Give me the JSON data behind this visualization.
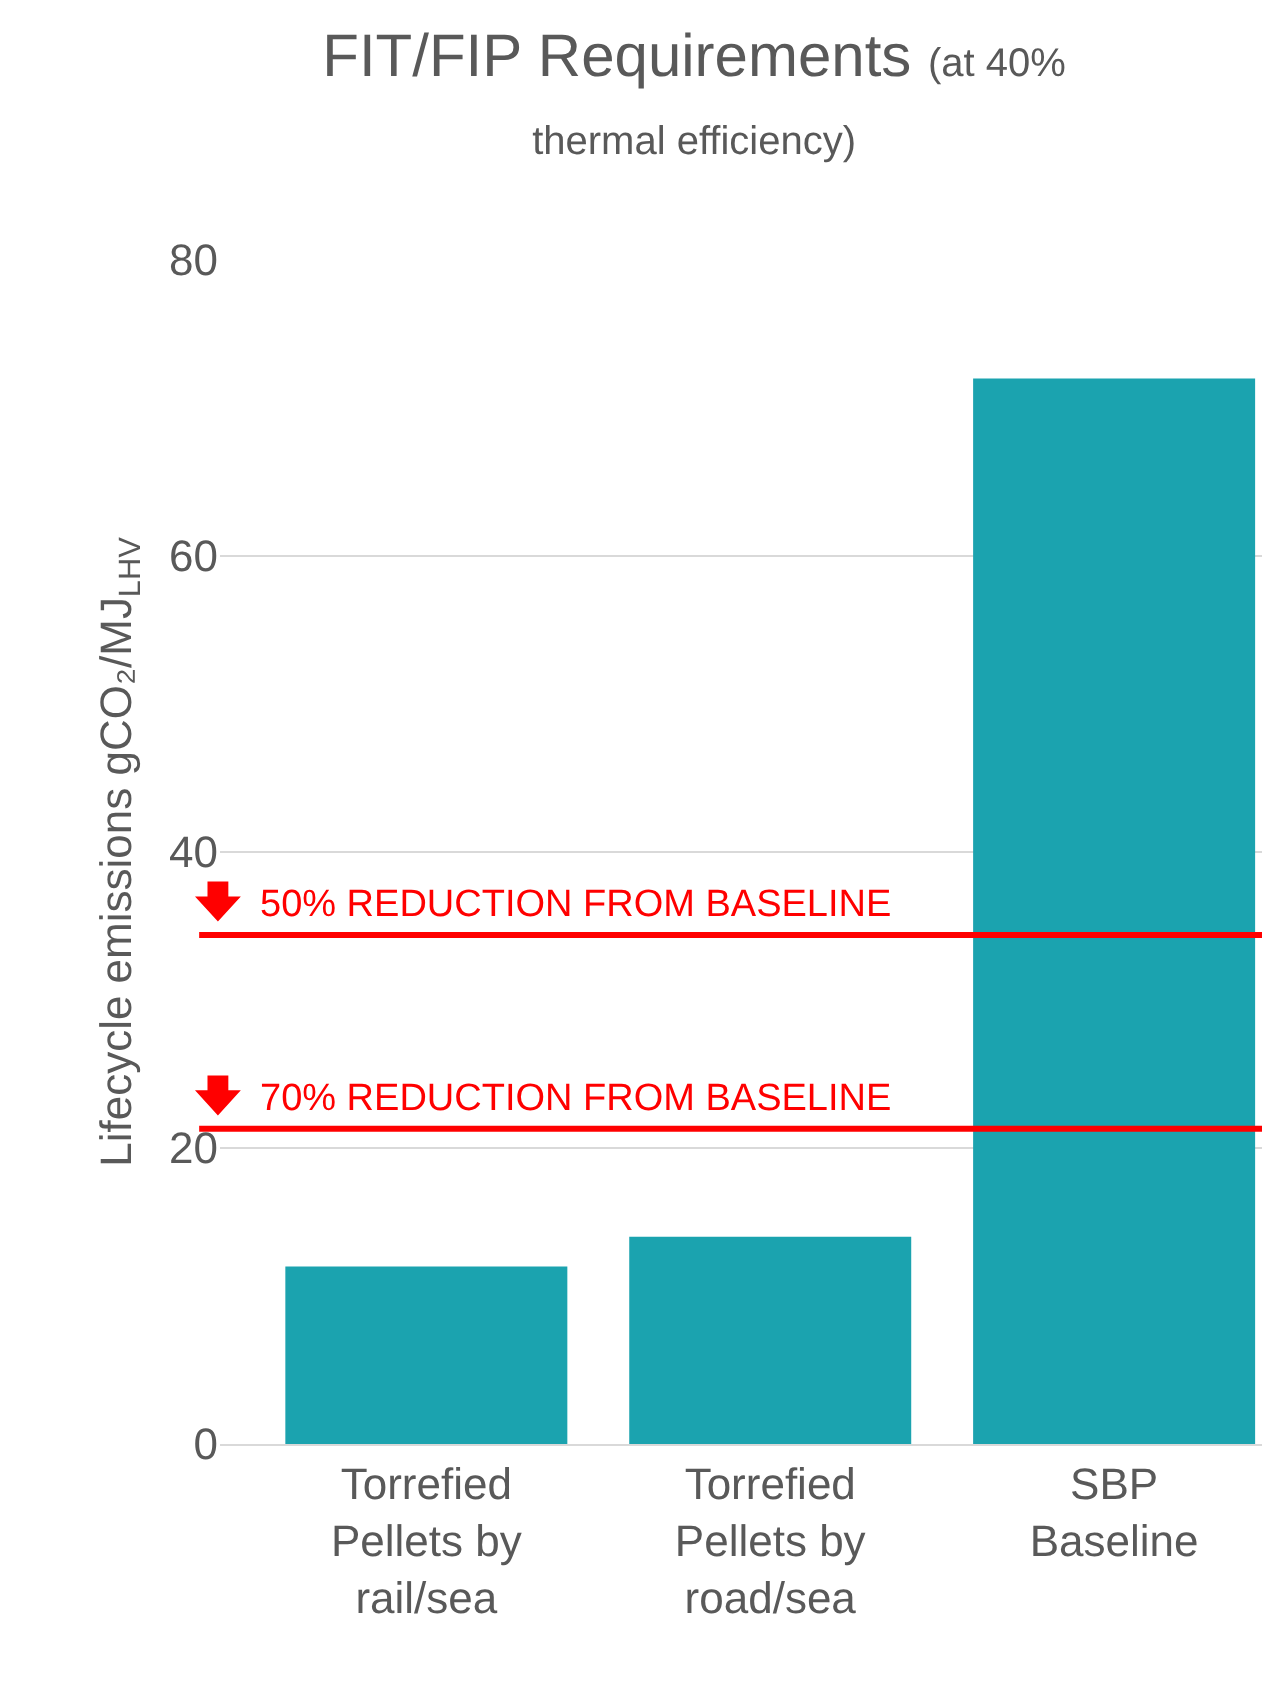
{
  "chart_data": {
    "type": "bar",
    "title": "FIT/FIP Requirements",
    "subtitle": "(at 40% thermal efficiency)",
    "ylabel": "Lifecycle emissions gCO₂/MJ$_{LHV}$",
    "categories": [
      "Torrefied Pellets by rail/sea",
      "Torrefied Pellets by road/sea",
      "SBP Baseline"
    ],
    "values": [
      12,
      14,
      72
    ],
    "color": "#1ba3af",
    "ylim": [
      0,
      80
    ],
    "yticks": [
      0,
      20,
      40,
      60,
      80
    ],
    "grid": "y",
    "legend": false,
    "ref_lines": [
      {
        "axis": "y",
        "value": 34.4,
        "label": "50% REDUCTION FROM BASELINE",
        "color": "#ff0000"
      },
      {
        "axis": "y",
        "value": 21.3,
        "label": "70% REDUCTION FROM BASELINE",
        "color": "#ff0000"
      }
    ]
  }
}
